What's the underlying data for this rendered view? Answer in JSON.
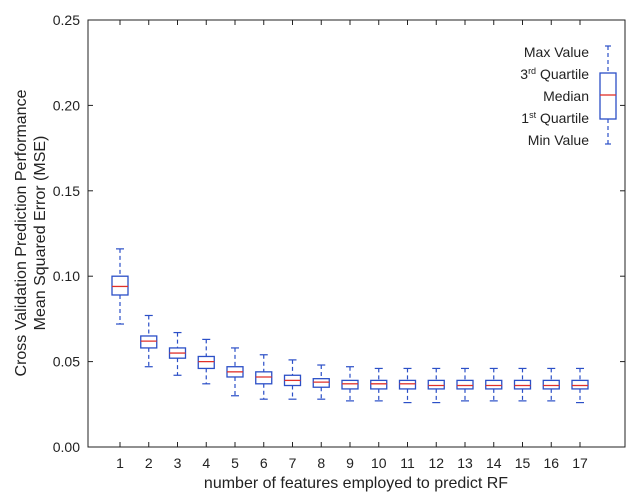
{
  "chart_data": {
    "type": "box",
    "xlabel": "number of features employed to predict RF",
    "ylabel_lines": [
      "Cross Validation Prediction Performance",
      "Mean Squared Error (MSE)"
    ],
    "ylim": [
      0.0,
      0.25
    ],
    "yticks": [
      0.0,
      0.05,
      0.1,
      0.15,
      0.2,
      0.25
    ],
    "ytick_labels": [
      "0.00",
      "0.05",
      "0.10",
      "0.15",
      "0.20",
      "0.25"
    ],
    "categories": [
      "1",
      "2",
      "3",
      "4",
      "5",
      "6",
      "7",
      "8",
      "9",
      "10",
      "11",
      "12",
      "13",
      "14",
      "15",
      "16",
      "17"
    ],
    "boxes": [
      {
        "min": 0.072,
        "q1": 0.089,
        "median": 0.094,
        "q3": 0.1,
        "max": 0.116
      },
      {
        "min": 0.047,
        "q1": 0.058,
        "median": 0.062,
        "q3": 0.065,
        "max": 0.077
      },
      {
        "min": 0.042,
        "q1": 0.052,
        "median": 0.055,
        "q3": 0.058,
        "max": 0.067
      },
      {
        "min": 0.037,
        "q1": 0.046,
        "median": 0.05,
        "q3": 0.053,
        "max": 0.063
      },
      {
        "min": 0.03,
        "q1": 0.041,
        "median": 0.044,
        "q3": 0.047,
        "max": 0.058
      },
      {
        "min": 0.028,
        "q1": 0.037,
        "median": 0.041,
        "q3": 0.044,
        "max": 0.054
      },
      {
        "min": 0.028,
        "q1": 0.036,
        "median": 0.039,
        "q3": 0.042,
        "max": 0.051
      },
      {
        "min": 0.028,
        "q1": 0.035,
        "median": 0.038,
        "q3": 0.04,
        "max": 0.048
      },
      {
        "min": 0.027,
        "q1": 0.034,
        "median": 0.037,
        "q3": 0.039,
        "max": 0.047
      },
      {
        "min": 0.027,
        "q1": 0.034,
        "median": 0.037,
        "q3": 0.039,
        "max": 0.046
      },
      {
        "min": 0.026,
        "q1": 0.034,
        "median": 0.037,
        "q3": 0.039,
        "max": 0.046
      },
      {
        "min": 0.026,
        "q1": 0.034,
        "median": 0.036,
        "q3": 0.039,
        "max": 0.046
      },
      {
        "min": 0.027,
        "q1": 0.034,
        "median": 0.036,
        "q3": 0.039,
        "max": 0.046
      },
      {
        "min": 0.027,
        "q1": 0.034,
        "median": 0.036,
        "q3": 0.039,
        "max": 0.046
      },
      {
        "min": 0.027,
        "q1": 0.034,
        "median": 0.036,
        "q3": 0.039,
        "max": 0.046
      },
      {
        "min": 0.027,
        "q1": 0.034,
        "median": 0.036,
        "q3": 0.039,
        "max": 0.046
      },
      {
        "min": 0.026,
        "q1": 0.034,
        "median": 0.036,
        "q3": 0.039,
        "max": 0.046
      }
    ],
    "legend": {
      "position": "top-right",
      "labels": {
        "max": "Max Value",
        "q3": "3rd Quartile",
        "median": "Median",
        "q1": "1st Quartile",
        "min": "Min Value"
      }
    },
    "grid": false,
    "colors": {
      "box": "#2b4fc7",
      "median": "#e0302a",
      "axis": "#222222"
    }
  }
}
